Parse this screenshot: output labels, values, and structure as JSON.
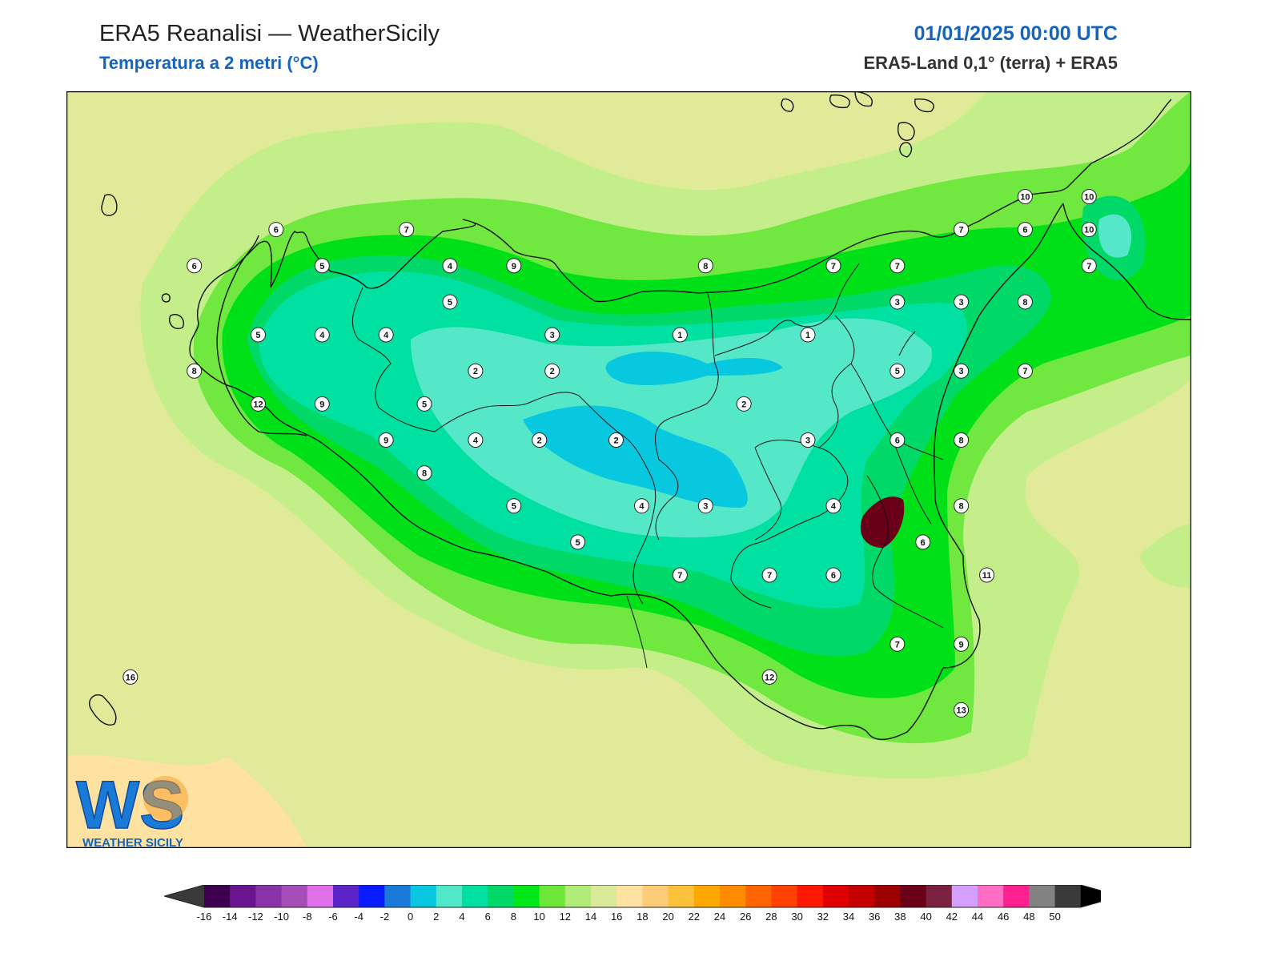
{
  "header": {
    "title": "ERA5 Reanalisi — WeatherSicily",
    "subtitle": "Temperatura a 2 metri (°C)",
    "datetime": "01/01/2025 00:00 UTC",
    "source": "ERA5-Land 0,1° (terra) + ERA5"
  },
  "logo": {
    "text": "WEATHER SICILY",
    "letters": "WS"
  },
  "map": {
    "variable": "2m temperature",
    "unit": "°C",
    "station_labels": [
      {
        "value": "6",
        "lon": 12.82,
        "lat": 38.18
      },
      {
        "value": "7",
        "lon": 13.33,
        "lat": 38.18
      },
      {
        "value": "6",
        "lon": 12.5,
        "lat": 38.07
      },
      {
        "value": "5",
        "lon": 13.0,
        "lat": 38.07
      },
      {
        "value": "4",
        "lon": 13.5,
        "lat": 38.07
      },
      {
        "value": "9",
        "lon": 13.75,
        "lat": 38.07
      },
      {
        "value": "8",
        "lon": 14.5,
        "lat": 38.07
      },
      {
        "value": "7",
        "lon": 15.0,
        "lat": 38.07
      },
      {
        "value": "7",
        "lon": 15.25,
        "lat": 38.07
      },
      {
        "value": "5",
        "lon": 13.5,
        "lat": 37.96
      },
      {
        "value": "5",
        "lon": 12.75,
        "lat": 37.86
      },
      {
        "value": "4",
        "lon": 13.0,
        "lat": 37.86
      },
      {
        "value": "4",
        "lon": 13.25,
        "lat": 37.86
      },
      {
        "value": "3",
        "lon": 13.9,
        "lat": 37.86
      },
      {
        "value": "1",
        "lon": 14.4,
        "lat": 37.86
      },
      {
        "value": "1",
        "lon": 14.9,
        "lat": 37.86
      },
      {
        "value": "8",
        "lon": 12.5,
        "lat": 37.75
      },
      {
        "value": "2",
        "lon": 13.6,
        "lat": 37.75
      },
      {
        "value": "2",
        "lon": 13.9,
        "lat": 37.75
      },
      {
        "value": "12",
        "lon": 12.75,
        "lat": 37.65
      },
      {
        "value": "9",
        "lon": 13.0,
        "lat": 37.65
      },
      {
        "value": "5",
        "lon": 13.4,
        "lat": 37.65
      },
      {
        "value": "2",
        "lon": 14.65,
        "lat": 37.65
      },
      {
        "value": "9",
        "lon": 13.25,
        "lat": 37.54
      },
      {
        "value": "4",
        "lon": 13.6,
        "lat": 37.54
      },
      {
        "value": "2",
        "lon": 13.85,
        "lat": 37.54
      },
      {
        "value": "2",
        "lon": 14.15,
        "lat": 37.54
      },
      {
        "value": "3",
        "lon": 14.9,
        "lat": 37.54
      },
      {
        "value": "8",
        "lon": 13.4,
        "lat": 37.44
      },
      {
        "value": "5",
        "lon": 13.75,
        "lat": 37.34
      },
      {
        "value": "4",
        "lon": 14.25,
        "lat": 37.34
      },
      {
        "value": "3",
        "lon": 14.5,
        "lat": 37.34
      },
      {
        "value": "4",
        "lon": 15.0,
        "lat": 37.34
      },
      {
        "value": "5",
        "lon": 14.0,
        "lat": 37.23
      },
      {
        "value": "7",
        "lon": 14.4,
        "lat": 37.13
      },
      {
        "value": "7",
        "lon": 14.75,
        "lat": 37.13
      },
      {
        "value": "6",
        "lon": 15.0,
        "lat": 37.13
      },
      {
        "value": "10",
        "lon": 15.75,
        "lat": 38.28
      },
      {
        "value": "10",
        "lon": 16.0,
        "lat": 38.28
      },
      {
        "value": "7",
        "lon": 15.5,
        "lat": 38.18
      },
      {
        "value": "6",
        "lon": 15.75,
        "lat": 38.18
      },
      {
        "value": "10",
        "lon": 16.0,
        "lat": 38.18
      },
      {
        "value": "7",
        "lon": 16.0,
        "lat": 38.07
      },
      {
        "value": "3",
        "lon": 15.25,
        "lat": 37.96
      },
      {
        "value": "3",
        "lon": 15.5,
        "lat": 37.96
      },
      {
        "value": "8",
        "lon": 15.75,
        "lat": 37.96
      },
      {
        "value": "5",
        "lon": 15.25,
        "lat": 37.75
      },
      {
        "value": "3",
        "lon": 15.5,
        "lat": 37.75
      },
      {
        "value": "7",
        "lon": 15.75,
        "lat": 37.75
      },
      {
        "value": "6",
        "lon": 15.25,
        "lat": 37.54
      },
      {
        "value": "8",
        "lon": 15.5,
        "lat": 37.54
      },
      {
        "value": "8",
        "lon": 15.5,
        "lat": 37.34
      },
      {
        "value": "6",
        "lon": 15.35,
        "lat": 37.23
      },
      {
        "value": "11",
        "lon": 15.6,
        "lat": 37.13
      },
      {
        "value": "7",
        "lon": 15.25,
        "lat": 36.92
      },
      {
        "value": "9",
        "lon": 15.5,
        "lat": 36.92
      },
      {
        "value": "12",
        "lon": 14.75,
        "lat": 36.82
      },
      {
        "value": "13",
        "lon": 15.5,
        "lat": 36.72
      },
      {
        "value": "16",
        "lon": 12.25,
        "lat": 36.82
      }
    ]
  },
  "colorbar": {
    "ticks": [
      "-16",
      "-14",
      "-12",
      "-10",
      "-8",
      "-6",
      "-4",
      "-2",
      "0",
      "2",
      "4",
      "6",
      "8",
      "10",
      "12",
      "14",
      "16",
      "18",
      "20",
      "22",
      "24",
      "26",
      "28",
      "30",
      "32",
      "34",
      "36",
      "38",
      "40",
      "42",
      "44",
      "46",
      "48",
      "50"
    ],
    "colors": [
      "#3d0050",
      "#6a1490",
      "#8a33a8",
      "#a54db8",
      "#e070e8",
      "#5b23c8",
      "#0a1cff",
      "#1a7ad8",
      "#08c8e0",
      "#50e8c8",
      "#00e0a0",
      "#00d868",
      "#00e818",
      "#6ee838",
      "#b0ec78",
      "#d8ea98",
      "#fee2a2",
      "#fccc78",
      "#fcc13a",
      "#ffa800",
      "#ff8c00",
      "#ff6400",
      "#ff4000",
      "#ff1800",
      "#e00000",
      "#c40000",
      "#9c0000",
      "#6a0018",
      "#7a2040",
      "#d4a0ff",
      "#ff6ec4",
      "#ff2090",
      "#828282",
      "#3a3a3a"
    ],
    "under_color": "#3a3a3a",
    "over_color": "#000000"
  }
}
